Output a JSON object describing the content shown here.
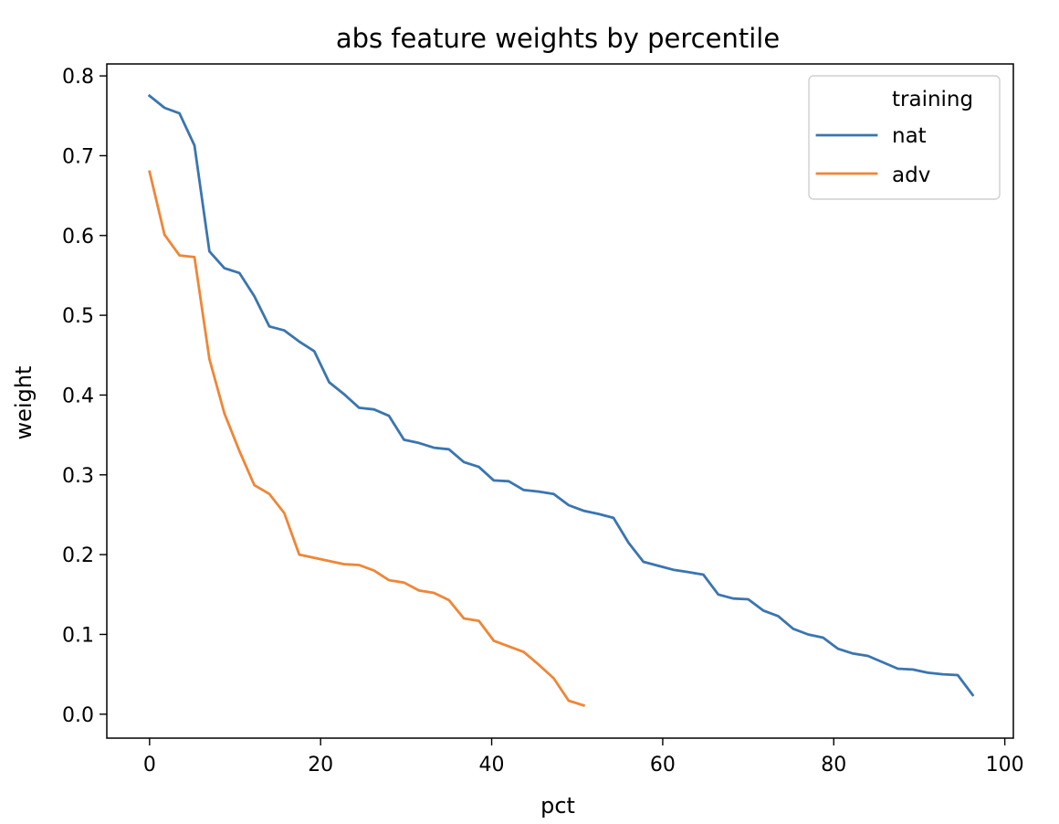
{
  "chart_data": {
    "type": "line",
    "title": "abs feature weights by percentile",
    "xlabel": "pct",
    "ylabel": "weight",
    "xlim": [
      -5,
      101
    ],
    "ylim": [
      -0.03,
      0.815
    ],
    "xticks": [
      0,
      20,
      40,
      60,
      80,
      100
    ],
    "xtick_labels": [
      "0",
      "20",
      "40",
      "60",
      "80",
      "100"
    ],
    "yticks": [
      0.0,
      0.1,
      0.2,
      0.3,
      0.4,
      0.5,
      0.6,
      0.7,
      0.8
    ],
    "ytick_labels": [
      "0.0",
      "0.1",
      "0.2",
      "0.3",
      "0.4",
      "0.5",
      "0.6",
      "0.7",
      "0.8"
    ],
    "grid": false,
    "legend": {
      "title": "training",
      "placement": "top-right"
    },
    "series": [
      {
        "name": "nat",
        "color": "#3a75b0",
        "x": [
          0,
          1.75,
          3.5,
          5.25,
          7,
          8.75,
          10.5,
          12.25,
          14,
          15.75,
          17.5,
          19.25,
          21,
          22.75,
          24.5,
          26.25,
          28,
          29.75,
          31.5,
          33.25,
          35,
          36.75,
          38.5,
          40.25,
          42,
          43.75,
          45.5,
          47.25,
          49,
          50.75,
          52.5,
          54.25,
          56,
          57.75,
          59.5,
          61.25,
          63,
          64.75,
          66.5,
          68.25,
          70,
          71.75,
          73.5,
          75.25,
          77,
          78.75,
          80.5,
          82.25,
          84,
          85.75,
          87.5,
          89.25,
          91,
          92.75,
          94.5,
          96.25
        ],
        "y": [
          0.775,
          0.76,
          0.753,
          0.713,
          0.58,
          0.559,
          0.553,
          0.524,
          0.486,
          0.481,
          0.467,
          0.455,
          0.416,
          0.401,
          0.384,
          0.382,
          0.374,
          0.344,
          0.34,
          0.334,
          0.332,
          0.316,
          0.31,
          0.293,
          0.292,
          0.281,
          0.279,
          0.276,
          0.262,
          0.255,
          0.251,
          0.246,
          0.215,
          0.191,
          0.186,
          0.181,
          0.178,
          0.175,
          0.15,
          0.145,
          0.144,
          0.13,
          0.123,
          0.107,
          0.1,
          0.096,
          0.082,
          0.076,
          0.073,
          0.065,
          0.057,
          0.056,
          0.052,
          0.05,
          0.049,
          0.024
        ]
      },
      {
        "name": "adv",
        "color": "#ef8636",
        "x": [
          0,
          1.75,
          3.5,
          5.25,
          7,
          8.75,
          10.5,
          12.25,
          14,
          15.75,
          17.5,
          19.25,
          21,
          22.75,
          24.5,
          26.25,
          28,
          29.75,
          31.5,
          33.25,
          35,
          36.75,
          38.5,
          40.25,
          42,
          43.75,
          45.5,
          47.25,
          49,
          50.75
        ],
        "y": [
          0.68,
          0.601,
          0.575,
          0.573,
          0.445,
          0.377,
          0.33,
          0.287,
          0.276,
          0.252,
          0.2,
          0.196,
          0.192,
          0.188,
          0.187,
          0.18,
          0.168,
          0.165,
          0.155,
          0.152,
          0.143,
          0.12,
          0.117,
          0.092,
          0.085,
          0.078,
          0.062,
          0.045,
          0.017,
          0.011
        ]
      }
    ]
  }
}
